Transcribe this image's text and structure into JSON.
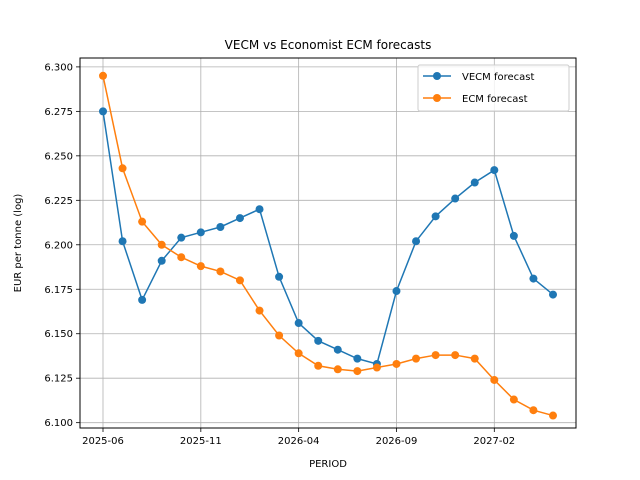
{
  "chart_data": {
    "type": "line",
    "title": "VECM vs Economist ECM forecasts",
    "xlabel": "PERIOD",
    "ylabel": "EUR per tonne (log)",
    "x": [
      "2025-06",
      "2025-07",
      "2025-08",
      "2025-09",
      "2025-10",
      "2025-11",
      "2025-12",
      "2026-01",
      "2026-02",
      "2026-03",
      "2026-04",
      "2026-05",
      "2026-06",
      "2026-07",
      "2026-08",
      "2026-09",
      "2026-10",
      "2026-11",
      "2026-12",
      "2027-01",
      "2027-02",
      "2027-03",
      "2027-04",
      "2027-05"
    ],
    "x_ticks": [
      "2025-06",
      "2025-11",
      "2026-04",
      "2026-09",
      "2027-02"
    ],
    "y_ticks": [
      "6.100",
      "6.125",
      "6.150",
      "6.175",
      "6.200",
      "6.225",
      "6.250",
      "6.275",
      "6.300"
    ],
    "ylim": [
      6.097,
      6.305
    ],
    "grid": true,
    "legend_position": "upper right",
    "series": [
      {
        "name": "VECM forecast",
        "color": "#1f77b4",
        "values": [
          6.275,
          6.202,
          6.169,
          6.191,
          6.204,
          6.207,
          6.21,
          6.215,
          6.22,
          6.182,
          6.156,
          6.146,
          6.141,
          6.136,
          6.133,
          6.174,
          6.202,
          6.216,
          6.226,
          6.235,
          6.242,
          6.205,
          6.181,
          6.172
        ]
      },
      {
        "name": "ECM forecast",
        "color": "#ff7f0e",
        "values": [
          6.295,
          6.243,
          6.213,
          6.2,
          6.193,
          6.188,
          6.185,
          6.18,
          6.163,
          6.149,
          6.139,
          6.132,
          6.13,
          6.129,
          6.131,
          6.133,
          6.136,
          6.138,
          6.138,
          6.136,
          6.124,
          6.113,
          6.107,
          6.104
        ]
      }
    ]
  }
}
